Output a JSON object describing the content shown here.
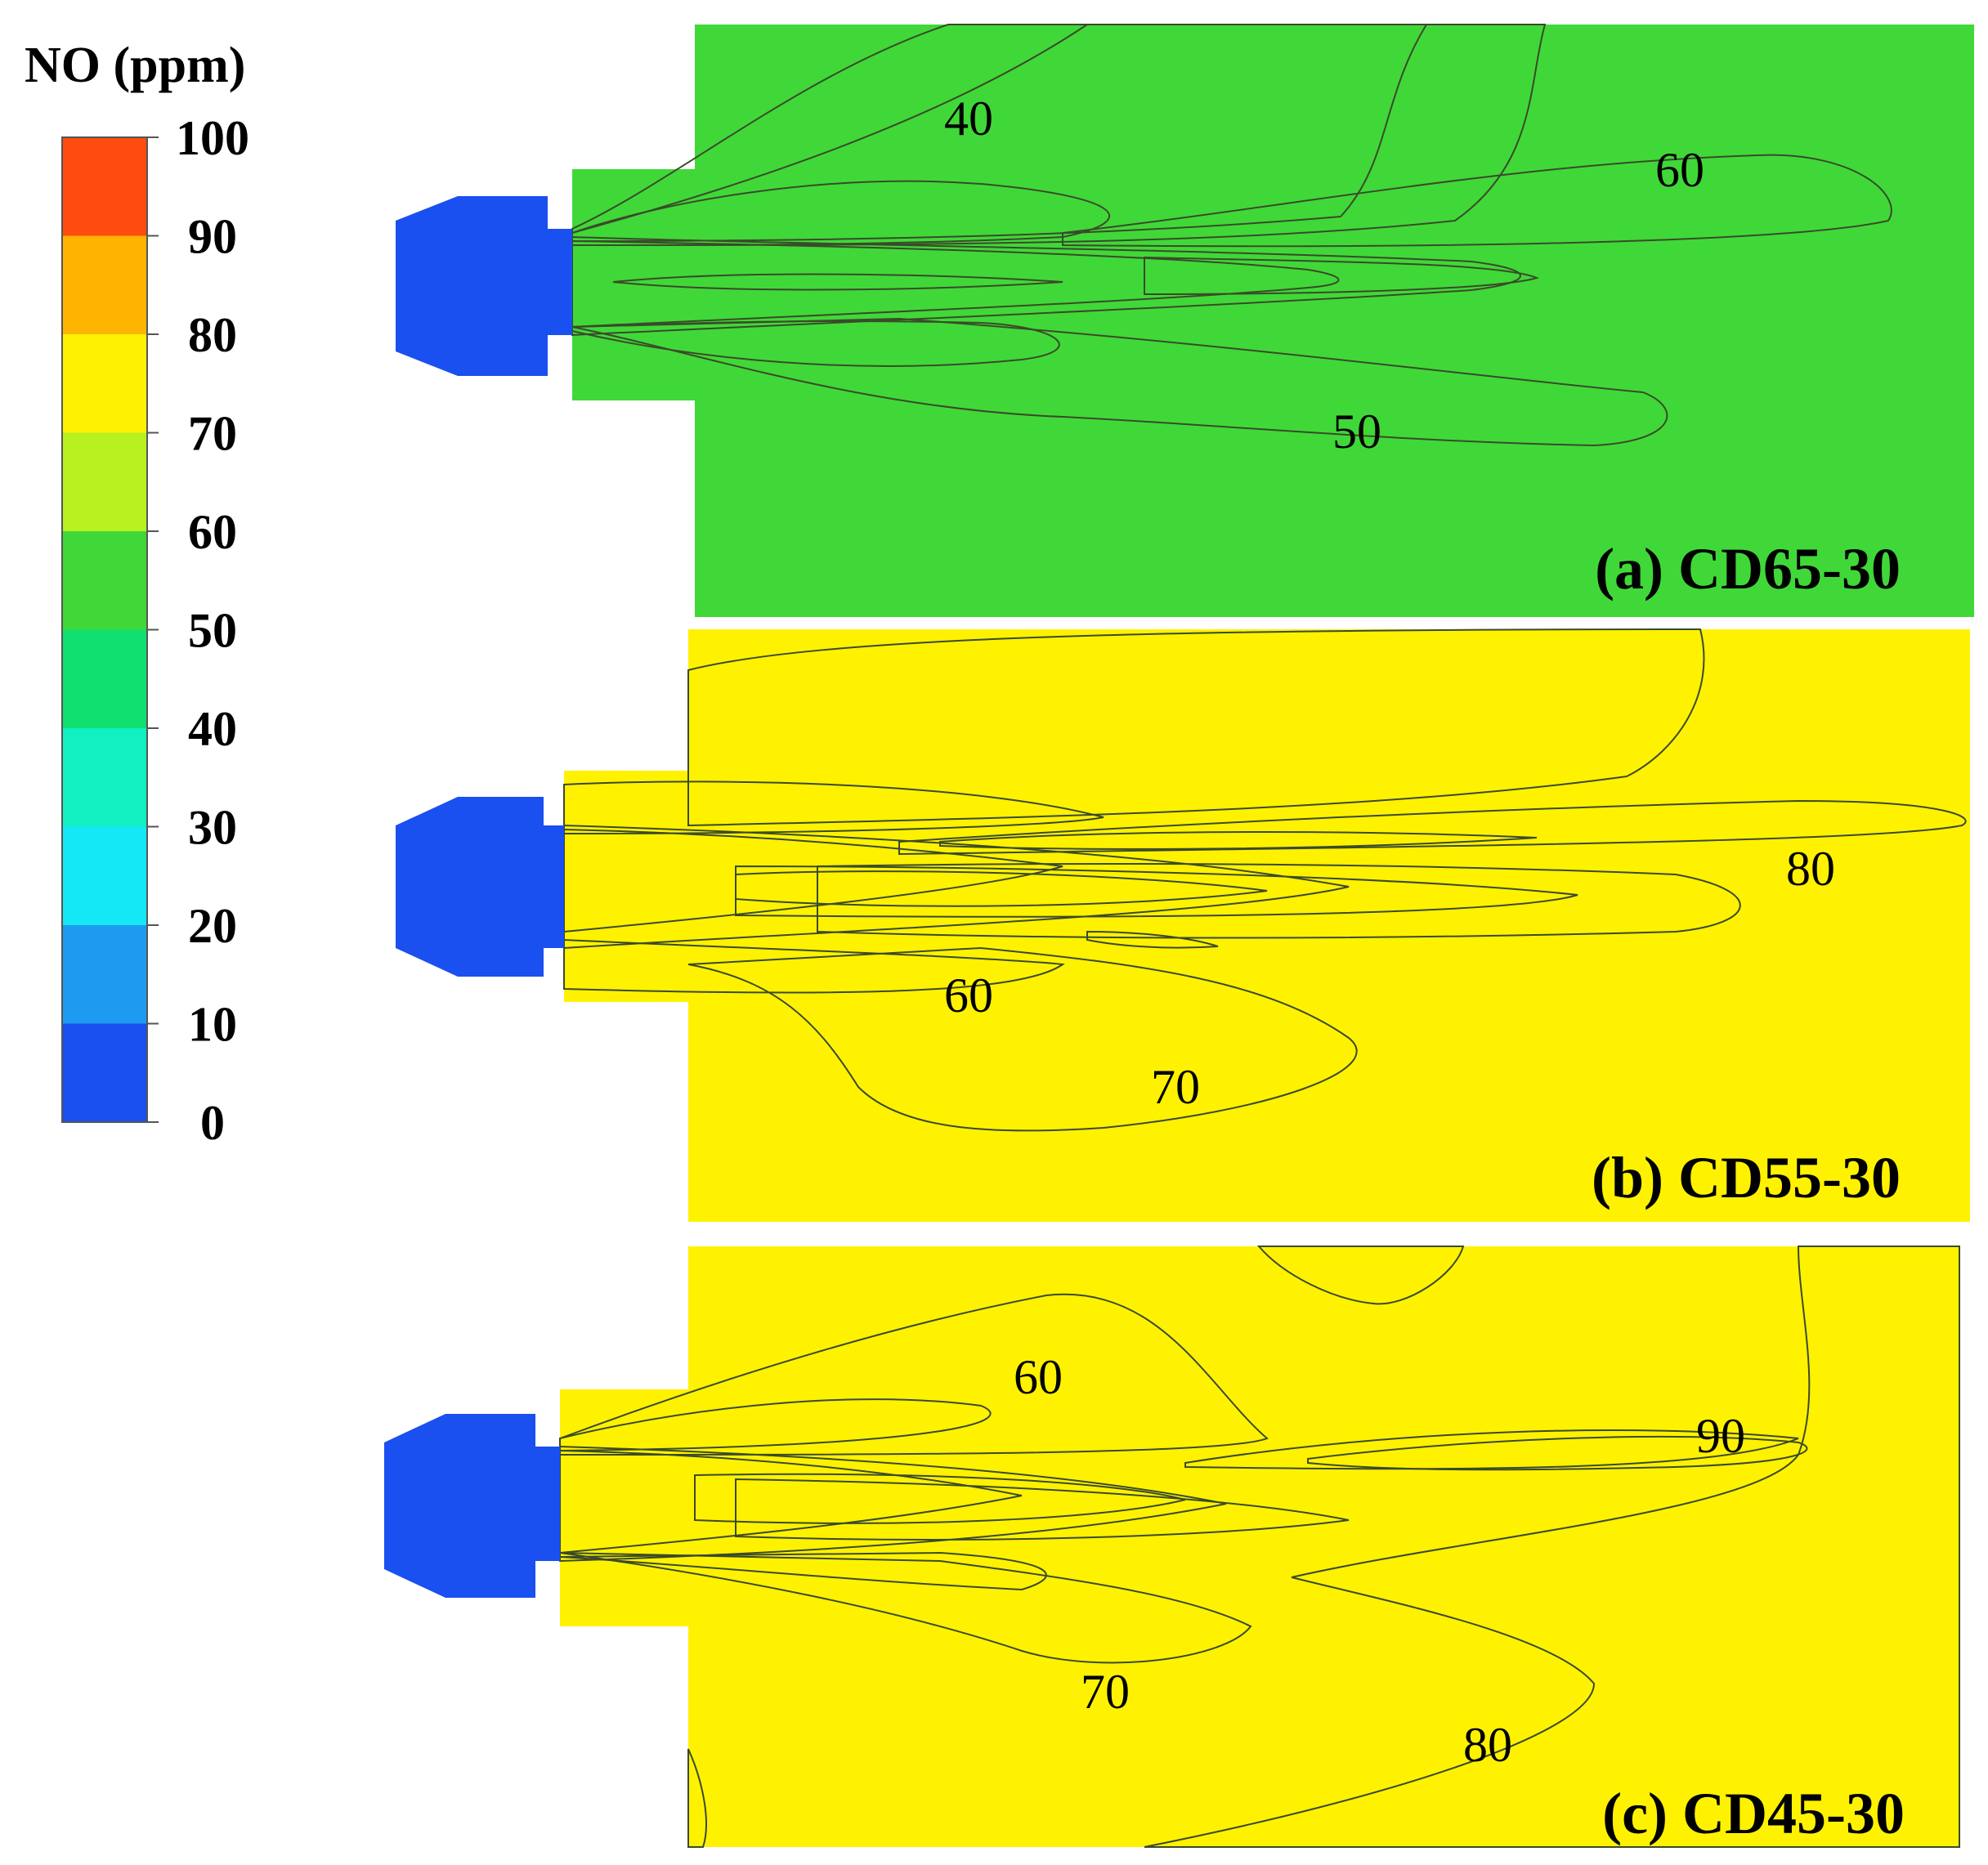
{
  "chart_data": {
    "type": "heatmap",
    "colorbar": {
      "title": "NO (ppm)",
      "min": 0,
      "max": 100,
      "ticks": [
        100,
        90,
        80,
        70,
        60,
        50,
        40,
        30,
        20,
        10,
        0
      ],
      "bands": [
        {
          "from": 0,
          "to": 10,
          "color": "#1a4ff0"
        },
        {
          "from": 10,
          "to": 20,
          "color": "#1e9af0"
        },
        {
          "from": 20,
          "to": 30,
          "color": "#14e8f4"
        },
        {
          "from": 30,
          "to": 40,
          "color": "#10f0c0"
        },
        {
          "from": 40,
          "to": 50,
          "color": "#10e070"
        },
        {
          "from": 50,
          "to": 60,
          "color": "#40d838"
        },
        {
          "from": 60,
          "to": 70,
          "color": "#b8f020"
        },
        {
          "from": 70,
          "to": 80,
          "color": "#fff200"
        },
        {
          "from": 80,
          "to": 90,
          "color": "#ffb400"
        },
        {
          "from": 90,
          "to": 100,
          "color": "#ff4b10"
        }
      ]
    },
    "panels": [
      {
        "label": "(a) CD65-30",
        "background_value": 55,
        "contour_labels": [
          "40",
          "60",
          "50"
        ]
      },
      {
        "label": "(b) CD55-30",
        "background_value": 75,
        "contour_labels": [
          "80",
          "60",
          "70"
        ]
      },
      {
        "label": "(c) CD45-30",
        "background_value": 75,
        "contour_labels": [
          "60",
          "90",
          "70",
          "80"
        ]
      }
    ]
  }
}
